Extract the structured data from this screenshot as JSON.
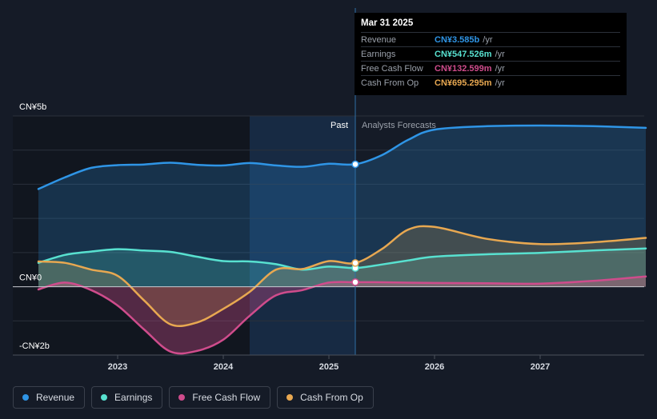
{
  "tooltip": {
    "date": "Mar 31 2025",
    "rows": [
      {
        "label": "Revenue",
        "value": "CN¥3.585b",
        "unit": "/yr",
        "color": "#2f95e6"
      },
      {
        "label": "Earnings",
        "value": "CN¥547.526m",
        "unit": "/yr",
        "color": "#58e1d0"
      },
      {
        "label": "Free Cash Flow",
        "value": "CN¥132.599m",
        "unit": "/yr",
        "color": "#cf4c8c"
      },
      {
        "label": "Cash From Op",
        "value": "CN¥695.295m",
        "unit": "/yr",
        "color": "#e8a851"
      }
    ]
  },
  "regions": {
    "past": "Past",
    "forecast": "Analysts Forecasts"
  },
  "legend": [
    {
      "label": "Revenue",
      "color": "#2f95e6"
    },
    {
      "label": "Earnings",
      "color": "#58e1d0"
    },
    {
      "label": "Free Cash Flow",
      "color": "#cf4c8c"
    },
    {
      "label": "Cash From Op",
      "color": "#e8a851"
    }
  ],
  "chart_data": {
    "type": "area",
    "title": "",
    "xlabel": "",
    "ylabel": "",
    "units": "CN¥ billions",
    "xlim": [
      2022.25,
      2028.0
    ],
    "ylim": [
      -2.0,
      5.0
    ],
    "y_tick_labels": [
      {
        "value": 5.0,
        "label": "CN¥5b"
      },
      {
        "value": 0.0,
        "label": "CN¥0"
      },
      {
        "value": -2.0,
        "label": "-CN¥2b"
      }
    ],
    "x_ticks": [
      {
        "value": 2023,
        "label": "2023"
      },
      {
        "value": 2024,
        "label": "2024"
      },
      {
        "value": 2025,
        "label": "2025"
      },
      {
        "value": 2026,
        "label": "2026"
      },
      {
        "value": 2027,
        "label": "2027"
      }
    ],
    "divider_x": 2025.25,
    "series": [
      {
        "name": "Revenue",
        "color": "#2f95e6",
        "x": [
          2022.25,
          2022.5,
          2022.75,
          2023.0,
          2023.25,
          2023.5,
          2023.75,
          2024.0,
          2024.25,
          2024.5,
          2024.75,
          2025.0,
          2025.25,
          2025.5,
          2025.75,
          2026.0,
          2026.5,
          2027.0,
          2027.5,
          2028.0
        ],
        "y": [
          2.86,
          3.2,
          3.48,
          3.56,
          3.58,
          3.63,
          3.57,
          3.55,
          3.62,
          3.55,
          3.51,
          3.6,
          3.585,
          3.85,
          4.3,
          4.6,
          4.7,
          4.72,
          4.7,
          4.65
        ]
      },
      {
        "name": "Earnings",
        "color": "#58e1d0",
        "x": [
          2022.25,
          2022.5,
          2022.75,
          2023.0,
          2023.25,
          2023.5,
          2023.75,
          2024.0,
          2024.25,
          2024.5,
          2024.75,
          2025.0,
          2025.25,
          2025.5,
          2025.75,
          2026.0,
          2026.5,
          2027.0,
          2027.5,
          2028.0
        ],
        "y": [
          0.7,
          0.93,
          1.03,
          1.1,
          1.06,
          1.02,
          0.88,
          0.75,
          0.74,
          0.66,
          0.5,
          0.59,
          0.548,
          0.65,
          0.77,
          0.88,
          0.95,
          0.99,
          1.06,
          1.12
        ]
      },
      {
        "name": "Free Cash Flow",
        "color": "#cf4c8c",
        "x": [
          2022.25,
          2022.5,
          2022.75,
          2023.0,
          2023.25,
          2023.5,
          2023.75,
          2024.0,
          2024.25,
          2024.5,
          2024.75,
          2025.0,
          2025.25,
          2025.5,
          2026.0,
          2026.5,
          2027.0,
          2027.5,
          2028.0
        ],
        "y": [
          -0.08,
          0.12,
          -0.1,
          -0.55,
          -1.25,
          -1.9,
          -1.88,
          -1.55,
          -0.85,
          -0.25,
          -0.1,
          0.12,
          0.133,
          0.13,
          0.11,
          0.1,
          0.09,
          0.17,
          0.3
        ]
      },
      {
        "name": "Cash From Op",
        "color": "#e8a851",
        "x": [
          2022.25,
          2022.5,
          2022.75,
          2023.0,
          2023.25,
          2023.5,
          2023.75,
          2024.0,
          2024.25,
          2024.5,
          2024.75,
          2025.0,
          2025.25,
          2025.5,
          2025.75,
          2026.0,
          2026.5,
          2027.0,
          2027.5,
          2028.0
        ],
        "y": [
          0.74,
          0.7,
          0.5,
          0.32,
          -0.4,
          -1.1,
          -1.05,
          -0.65,
          -0.15,
          0.5,
          0.52,
          0.75,
          0.695,
          1.1,
          1.67,
          1.75,
          1.4,
          1.25,
          1.3,
          1.43
        ]
      }
    ]
  }
}
